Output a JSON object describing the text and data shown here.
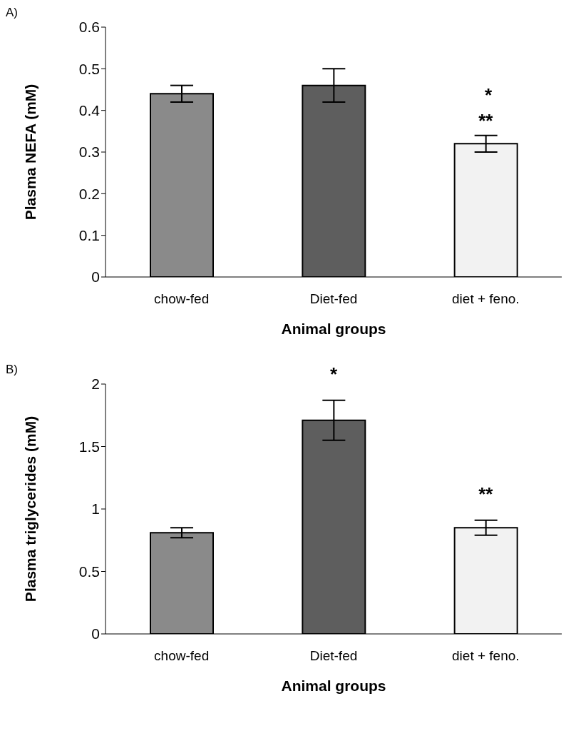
{
  "chart_data": [
    {
      "type": "bar",
      "ylabel": "Plasma NEFA (mM)",
      "xlabel": "Animal groups",
      "categories": [
        "chow-fed",
        "Diet-fed",
        "diet + feno."
      ],
      "values": [
        0.44,
        0.46,
        0.32
      ],
      "errors": [
        0.02,
        0.04,
        0.02
      ],
      "colors": [
        "#8a8a8a",
        "#5e5e5e",
        "#f2f2f2"
      ],
      "ylim": [
        0,
        0.6
      ],
      "yticks": [
        0,
        0.1,
        0.2,
        0.3,
        0.4,
        0.5,
        0.6
      ],
      "grid": false,
      "legend": false,
      "annotations": [
        "A)",
        {
          "text": "**",
          "x": "diet + feno.",
          "y": 0.34
        },
        "*"
      ]
    },
    {
      "type": "bar",
      "ylabel": "Plasma triglycerides (mM)",
      "xlabel": "Animal groups",
      "categories": [
        "chow-fed",
        "Diet-fed",
        "diet + feno."
      ],
      "values": [
        0.81,
        1.71,
        0.85
      ],
      "errors": [
        0.04,
        0.16,
        0.06
      ],
      "colors": [
        "#8a8a8a",
        "#5e5e5e",
        "#f2f2f2"
      ],
      "ylim": [
        0,
        2
      ],
      "yticks": [
        0,
        0.5,
        1,
        1.5,
        2
      ],
      "grid": false,
      "legend": false,
      "annotations": [
        "B)",
        {
          "text": "*",
          "x": "Diet-fed",
          "y": 1.87
        },
        {
          "text": "**",
          "x": "diet + feno.",
          "y": 0.91
        }
      ]
    }
  ]
}
